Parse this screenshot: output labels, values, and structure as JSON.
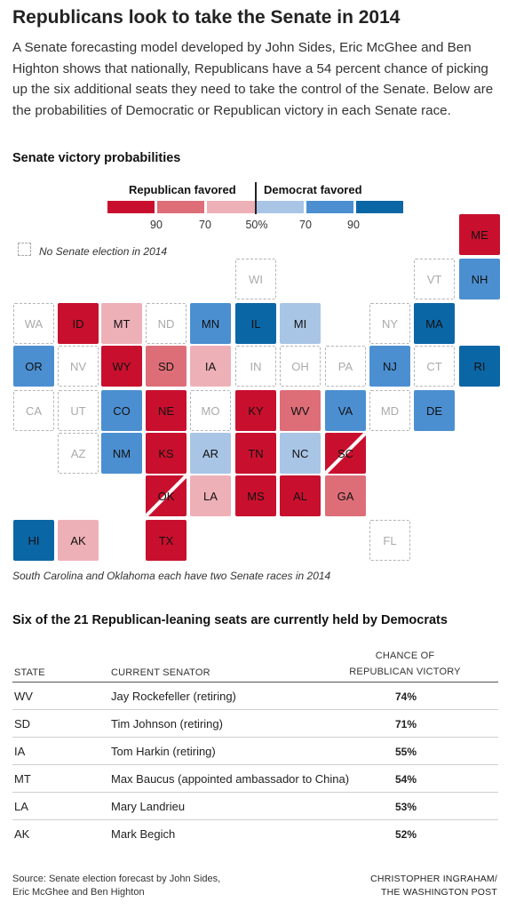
{
  "headline": "Republicans look to take the Senate in 2014",
  "dek": "A Senate forecasting model developed by John Sides, Eric McGhee and Ben Highton shows that nationally, Republicans have a 54 percent chance of picking up the six additional seats they need to take the control of the Senate. Below are the probabilities of Democratic or Republican victory in each Senate race.",
  "map_section": {
    "title": "Senate victory probabilities",
    "legend": {
      "republican_label": "Republican favored",
      "democrat_label": "Democrat favored",
      "ticks": [
        "90",
        "70",
        "50%",
        "70",
        "90"
      ],
      "colors": {
        "r3": "#c8102e",
        "r2": "#dd6e78",
        "r1": "#eeb0b7",
        "d1": "#a9c5e6",
        "d2": "#4c8fd1",
        "d3": "#0b66a5"
      }
    },
    "no_election_label": "No Senate election in 2014",
    "note": "South Carolina and Oklahoma each have two Senate races in 2014",
    "states": [
      {
        "abbr": "ME",
        "fill": "r3"
      },
      {
        "abbr": "WI",
        "fill": "none"
      },
      {
        "abbr": "VT",
        "fill": "none"
      },
      {
        "abbr": "NH",
        "fill": "d2"
      },
      {
        "abbr": "WA",
        "fill": "none"
      },
      {
        "abbr": "ID",
        "fill": "r3"
      },
      {
        "abbr": "MT",
        "fill": "r1"
      },
      {
        "abbr": "ND",
        "fill": "none"
      },
      {
        "abbr": "MN",
        "fill": "d2"
      },
      {
        "abbr": "IL",
        "fill": "d3"
      },
      {
        "abbr": "MI",
        "fill": "d1"
      },
      {
        "abbr": "NY",
        "fill": "none"
      },
      {
        "abbr": "MA",
        "fill": "d3"
      },
      {
        "abbr": "OR",
        "fill": "d2"
      },
      {
        "abbr": "NV",
        "fill": "none"
      },
      {
        "abbr": "WY",
        "fill": "r3"
      },
      {
        "abbr": "SD",
        "fill": "r2"
      },
      {
        "abbr": "IA",
        "fill": "r1"
      },
      {
        "abbr": "IN",
        "fill": "none"
      },
      {
        "abbr": "OH",
        "fill": "none"
      },
      {
        "abbr": "PA",
        "fill": "none"
      },
      {
        "abbr": "NJ",
        "fill": "d2"
      },
      {
        "abbr": "CT",
        "fill": "none"
      },
      {
        "abbr": "RI",
        "fill": "d3"
      },
      {
        "abbr": "CA",
        "fill": "none"
      },
      {
        "abbr": "UT",
        "fill": "none"
      },
      {
        "abbr": "CO",
        "fill": "d2"
      },
      {
        "abbr": "NE",
        "fill": "r3"
      },
      {
        "abbr": "MO",
        "fill": "none"
      },
      {
        "abbr": "KY",
        "fill": "r3"
      },
      {
        "abbr": "WV",
        "fill": "r2"
      },
      {
        "abbr": "VA",
        "fill": "d2"
      },
      {
        "abbr": "MD",
        "fill": "none"
      },
      {
        "abbr": "DE",
        "fill": "d2"
      },
      {
        "abbr": "AZ",
        "fill": "none"
      },
      {
        "abbr": "NM",
        "fill": "d2"
      },
      {
        "abbr": "KS",
        "fill": "r3"
      },
      {
        "abbr": "AR",
        "fill": "d1"
      },
      {
        "abbr": "TN",
        "fill": "r3"
      },
      {
        "abbr": "NC",
        "fill": "d1"
      },
      {
        "abbr": "SC",
        "fill": "r3",
        "split": true
      },
      {
        "abbr": "OK",
        "fill": "r3",
        "split": true
      },
      {
        "abbr": "LA",
        "fill": "r1"
      },
      {
        "abbr": "MS",
        "fill": "r3"
      },
      {
        "abbr": "AL",
        "fill": "r3"
      },
      {
        "abbr": "GA",
        "fill": "r2"
      },
      {
        "abbr": "HI",
        "fill": "d3"
      },
      {
        "abbr": "AK",
        "fill": "r1"
      },
      {
        "abbr": "TX",
        "fill": "r3"
      },
      {
        "abbr": "FL",
        "fill": "none"
      }
    ]
  },
  "table_section": {
    "title": "Six of the 21 Republican-leaning seats are currently held by Democrats",
    "headers": {
      "state": "STATE",
      "senator": "CURRENT SENATOR",
      "chance_line1": "CHANCE OF",
      "chance_line2": "REPUBLICAN VICTORY"
    },
    "rows": [
      {
        "state": "WV",
        "senator": "Jay Rockefeller (retiring)",
        "chance": "74%"
      },
      {
        "state": "SD",
        "senator": "Tim Johnson (retiring)",
        "chance": "71%"
      },
      {
        "state": "IA",
        "senator": "Tom Harkin (retiring)",
        "chance": "55%"
      },
      {
        "state": "MT",
        "senator": "Max Baucus (appointed ambassador to China)",
        "chance": "54%"
      },
      {
        "state": "LA",
        "senator": "Mary Landrieu",
        "chance": "53%"
      },
      {
        "state": "AK",
        "senator": "Mark Begich",
        "chance": "52%"
      }
    ]
  },
  "footer": {
    "source_line1": "Source: Senate election forecast by John Sides,",
    "source_line2": "Eric McGhee and Ben Highton",
    "credit_line1": "CHRISTOPHER INGRAHAM/",
    "credit_line2": "THE WASHINGTON POST"
  }
}
